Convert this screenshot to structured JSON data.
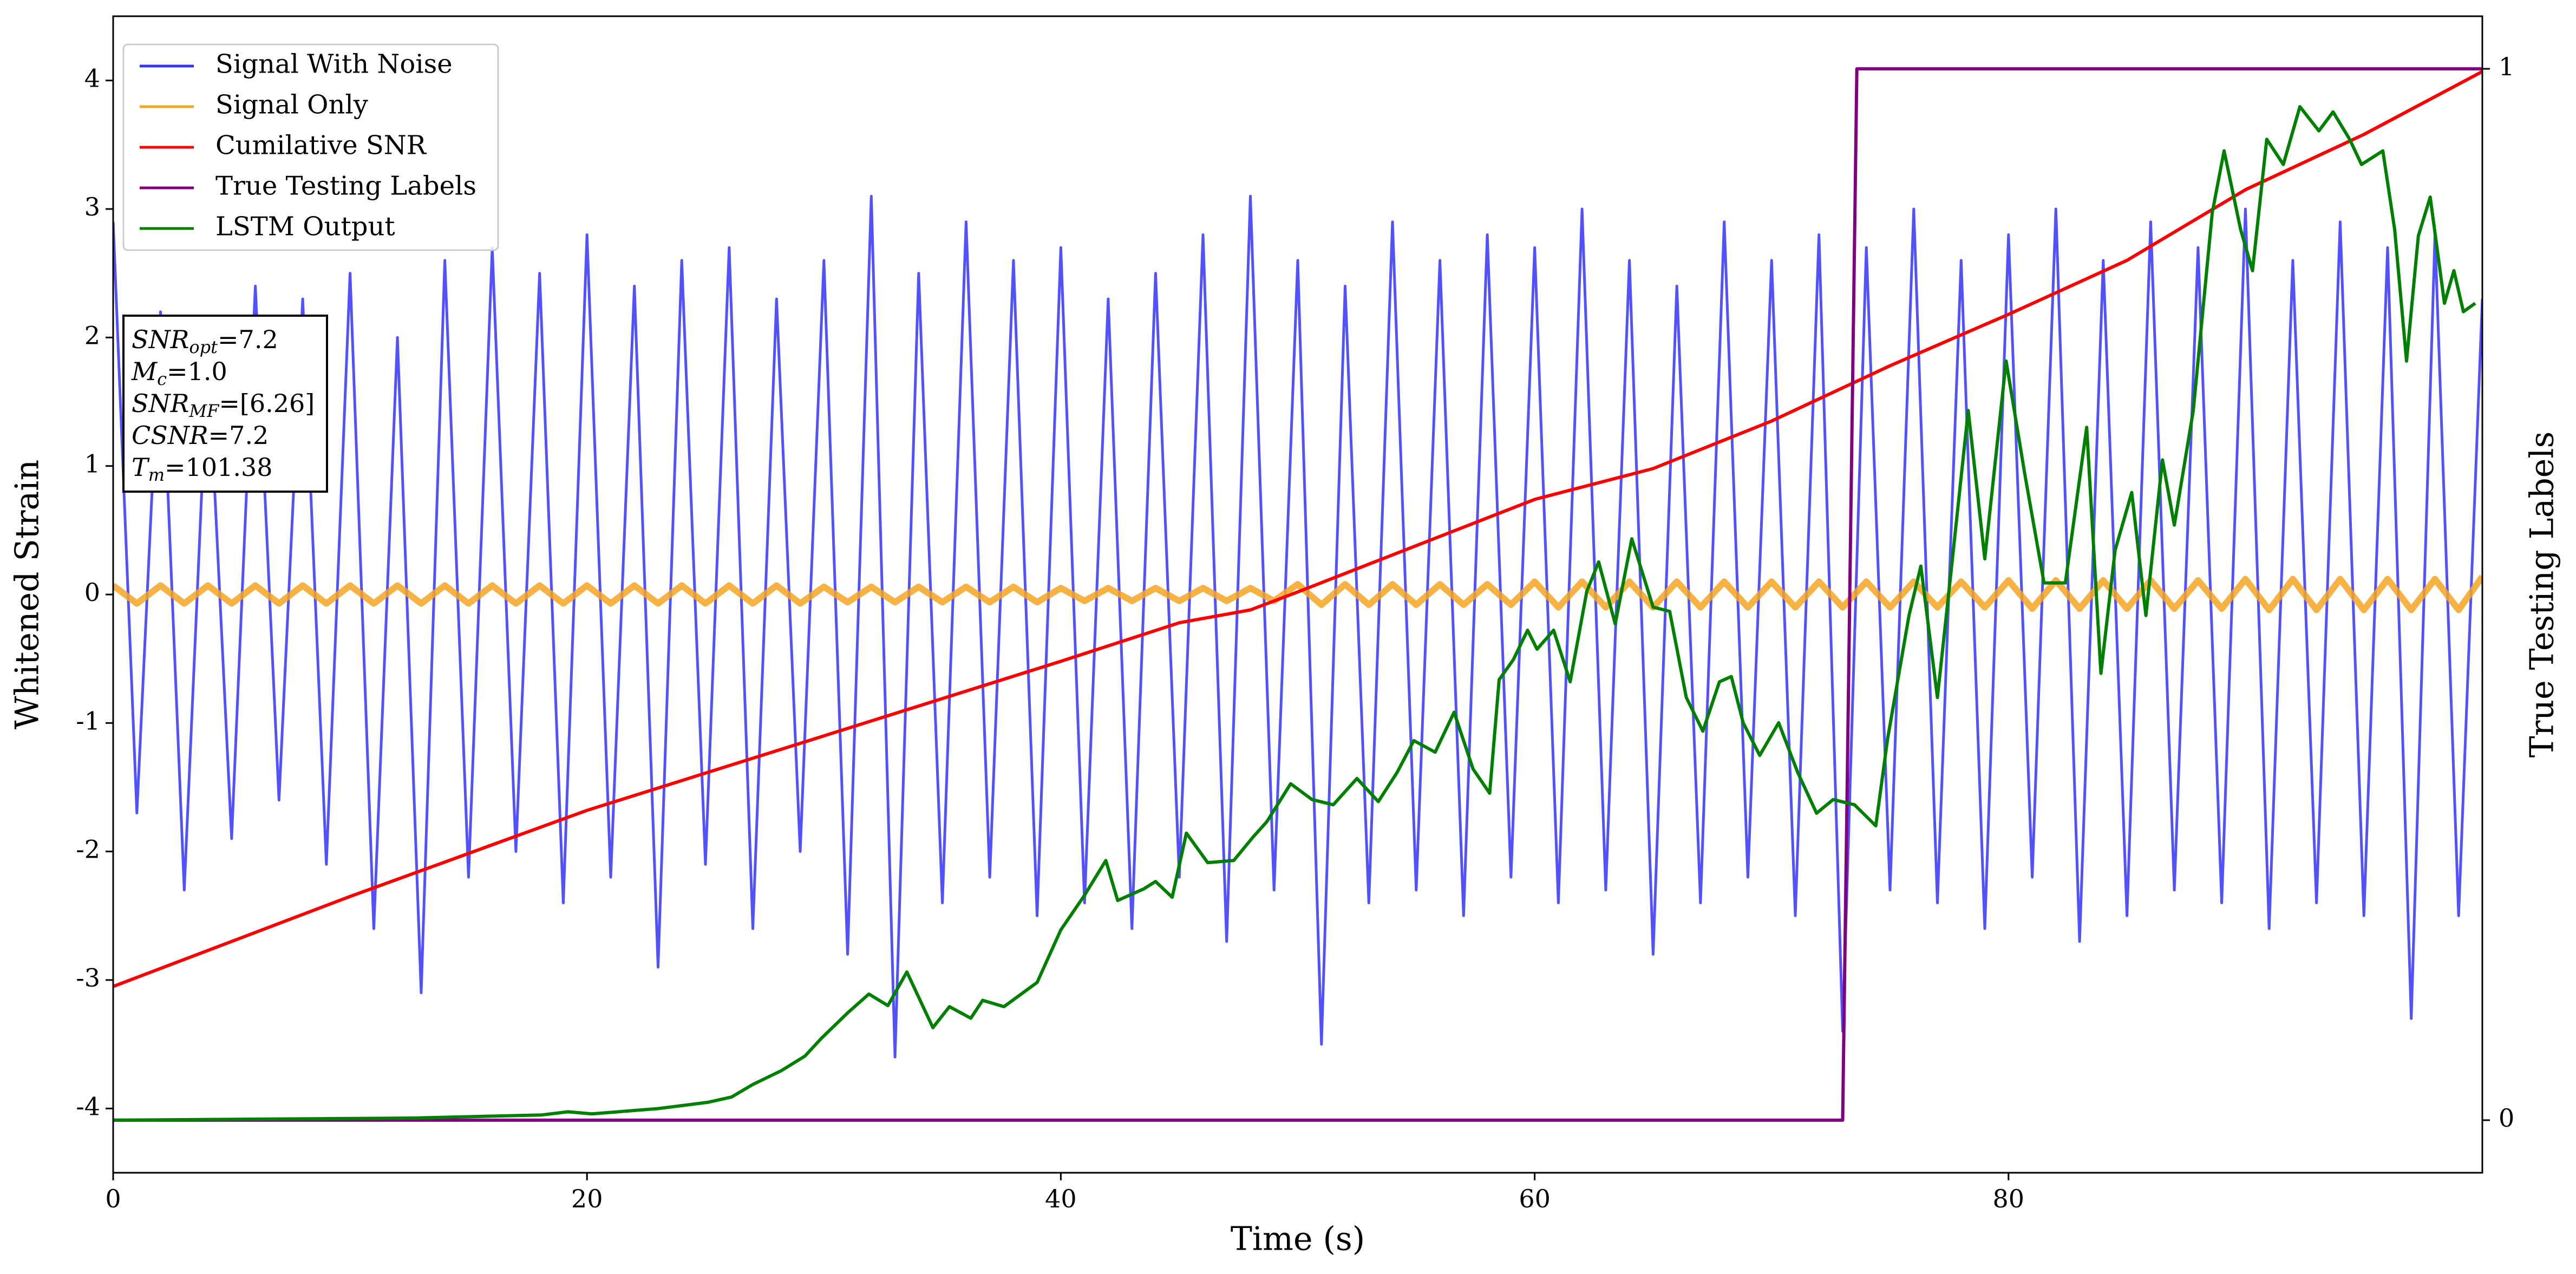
{
  "chart_data": {
    "type": "line",
    "xlabel": "Time (s)",
    "ylabel": "Whitened Strain",
    "y2label": "True Testing Labels",
    "xlim": [
      0,
      100
    ],
    "xticks": [
      0,
      20,
      40,
      60,
      80
    ],
    "ylim": [
      -4.5,
      4.5
    ],
    "yticks": [
      -4,
      -3,
      -2,
      -1,
      0,
      1,
      2,
      3,
      4
    ],
    "y2lim": [
      -0.05,
      1.05
    ],
    "y2ticks": [
      0,
      1
    ],
    "legend": "upper left",
    "x": [
      0,
      1,
      2,
      3,
      4,
      5,
      6,
      7,
      8,
      9,
      10,
      11,
      12,
      13,
      14,
      15,
      16,
      17,
      18,
      19,
      20,
      21,
      22,
      23,
      24,
      25,
      26,
      27,
      28,
      29,
      30,
      31,
      32,
      33,
      34,
      35,
      36,
      37,
      38,
      39,
      40,
      41,
      42,
      43,
      44,
      45,
      46,
      47,
      48,
      49,
      50,
      51,
      52,
      53,
      54,
      55,
      56,
      57,
      58,
      59,
      60,
      61,
      62,
      63,
      64,
      65,
      66,
      67,
      68,
      69,
      70,
      71,
      72,
      73,
      74,
      75,
      76,
      77,
      78,
      79,
      80,
      81,
      82,
      83,
      84,
      85,
      86,
      87,
      88,
      89,
      90,
      91,
      92,
      93,
      94,
      95,
      96,
      97,
      98,
      99,
      100
    ],
    "series": [
      {
        "name": "Signal With Noise",
        "color": "#3333ff",
        "values": [
          2.9,
          -1.7,
          2.2,
          -2.3,
          1.9,
          -1.9,
          2.4,
          -1.6,
          2.3,
          -2.1,
          2.5,
          -2.6,
          2.0,
          -3.1,
          2.6,
          -2.2,
          2.7,
          -2.0,
          2.5,
          -2.4,
          2.8,
          -2.2,
          2.4,
          -2.9,
          2.6,
          -2.1,
          2.7,
          -2.6,
          2.3,
          -2.0,
          2.6,
          -2.8,
          3.1,
          -3.6,
          2.5,
          -2.4,
          2.9,
          -2.2,
          2.6,
          -2.5,
          2.7,
          -2.4,
          2.3,
          -2.6,
          2.5,
          -2.2,
          2.8,
          -2.7,
          3.1,
          -2.3,
          2.6,
          -3.5,
          2.4,
          -2.4,
          2.9,
          -2.3,
          2.6,
          -2.5,
          2.8,
          -2.2,
          2.7,
          -2.4,
          3.0,
          -2.3,
          2.6,
          -2.8,
          2.4,
          -2.4,
          2.9,
          -2.2,
          2.6,
          -2.5,
          2.8,
          -3.4,
          2.7,
          -2.3,
          3.0,
          -2.4,
          2.6,
          -2.6,
          2.8,
          -2.2,
          3.0,
          -2.7,
          2.6,
          -2.5,
          2.9,
          -2.3,
          2.7,
          -2.4,
          3.0,
          -2.6,
          2.6,
          -2.4,
          2.9,
          -2.5,
          2.7,
          -3.3,
          2.8,
          -2.5,
          2.3
        ]
      },
      {
        "name": "Signal Only",
        "color": "#f5a623",
        "values": [
          0.07,
          -0.07,
          0.07,
          -0.07,
          0.07,
          -0.07,
          0.07,
          -0.07,
          0.07,
          -0.07,
          0.07,
          -0.07,
          0.07,
          -0.07,
          0.07,
          -0.07,
          0.07,
          -0.07,
          0.07,
          -0.07,
          0.07,
          -0.07,
          0.07,
          -0.07,
          0.07,
          -0.07,
          0.07,
          -0.07,
          0.07,
          -0.07,
          0.06,
          -0.06,
          0.06,
          -0.06,
          0.06,
          -0.06,
          0.06,
          -0.06,
          0.06,
          -0.06,
          0.05,
          -0.05,
          0.05,
          -0.05,
          0.05,
          -0.05,
          0.05,
          -0.05,
          0.05,
          -0.05,
          0.08,
          -0.08,
          0.08,
          -0.08,
          0.08,
          -0.08,
          0.08,
          -0.08,
          0.08,
          -0.08,
          0.1,
          -0.1,
          0.1,
          -0.1,
          0.1,
          -0.1,
          0.1,
          -0.1,
          0.1,
          -0.1,
          0.1,
          -0.1,
          0.1,
          -0.1,
          0.1,
          -0.1,
          0.1,
          -0.1,
          0.1,
          -0.1,
          0.11,
          -0.11,
          0.11,
          -0.11,
          0.11,
          -0.11,
          0.11,
          -0.11,
          0.11,
          -0.11,
          0.12,
          -0.12,
          0.12,
          -0.12,
          0.12,
          -0.12,
          0.12,
          -0.12,
          0.12,
          -0.12,
          0.14
        ]
      },
      {
        "name": "Cumilative SNR",
        "color": "#ff0000",
        "x": [
          0,
          10,
          20,
          30,
          40,
          45,
          48,
          50,
          55,
          60,
          65,
          70,
          75,
          80,
          85,
          90,
          95,
          100
        ],
        "values": [
          -3.05,
          -2.35,
          -1.68,
          -1.1,
          -0.52,
          -0.22,
          -0.12,
          0.02,
          0.38,
          0.74,
          0.98,
          1.35,
          1.78,
          2.18,
          2.6,
          3.15,
          3.58,
          4.07
        ]
      },
      {
        "name": "True Testing Labels",
        "color": "#800080",
        "axis": "y2",
        "x": [
          0,
          73,
          73.6,
          100
        ],
        "values": [
          0,
          0,
          1,
          1
        ]
      },
      {
        "name": "LSTM Output",
        "color": "#008000",
        "axis": "y2",
        "x": [
          0,
          12.6,
          18.1,
          19.2,
          20.2,
          23.0,
          25.1,
          26.1,
          27.0,
          28.2,
          29.2,
          29.9,
          31.0,
          31.9,
          32.7,
          33.5,
          34.6,
          35.3,
          36.2,
          36.7,
          37.6,
          39.0,
          40.0,
          41.0,
          41.9,
          42.4,
          43.5,
          44.0,
          44.7,
          45.3,
          46.2,
          47.3,
          48.1,
          48.7,
          49.7,
          50.6,
          51.5,
          52.5,
          53.4,
          54.2,
          54.9,
          55.8,
          56.6,
          57.4,
          58.1,
          58.5,
          59.1,
          59.7,
          60.1,
          60.8,
          61.5,
          62.2,
          62.7,
          63.4,
          64.1,
          65.0,
          65.7,
          66.4,
          67.1,
          67.8,
          68.3,
          68.8,
          69.5,
          70.3,
          71.1,
          71.9,
          72.6,
          73.5,
          74.4,
          74.9,
          75.8,
          76.3,
          77.0,
          77.6,
          78.3,
          79.0,
          79.9,
          80.7,
          81.5,
          82.4,
          83.3,
          83.9,
          84.5,
          85.2,
          85.8,
          86.5,
          87.0,
          87.8,
          88.6,
          89.1,
          89.8,
          90.3,
          90.9,
          91.6,
          92.3,
          93.1,
          93.7,
          94.4,
          94.9,
          95.8,
          96.3,
          96.8,
          97.3,
          97.8,
          98.4,
          98.8,
          99.2,
          99.7
        ],
        "values": [
          0,
          0.002,
          0.005,
          0.008,
          0.006,
          0.011,
          0.017,
          0.022,
          0.034,
          0.047,
          0.061,
          0.078,
          0.102,
          0.12,
          0.109,
          0.141,
          0.088,
          0.108,
          0.097,
          0.114,
          0.108,
          0.131,
          0.181,
          0.214,
          0.247,
          0.209,
          0.22,
          0.227,
          0.212,
          0.273,
          0.245,
          0.247,
          0.269,
          0.284,
          0.32,
          0.305,
          0.3,
          0.325,
          0.303,
          0.331,
          0.361,
          0.35,
          0.388,
          0.334,
          0.311,
          0.419,
          0.438,
          0.466,
          0.448,
          0.466,
          0.417,
          0.503,
          0.531,
          0.472,
          0.553,
          0.488,
          0.484,
          0.402,
          0.37,
          0.417,
          0.422,
          0.378,
          0.347,
          0.378,
          0.331,
          0.292,
          0.305,
          0.3,
          0.28,
          0.363,
          0.48,
          0.527,
          0.402,
          0.527,
          0.675,
          0.534,
          0.722,
          0.613,
          0.511,
          0.511,
          0.659,
          0.425,
          0.542,
          0.597,
          0.48,
          0.628,
          0.566,
          0.675,
          0.863,
          0.922,
          0.847,
          0.808,
          0.933,
          0.909,
          0.964,
          0.941,
          0.959,
          0.933,
          0.909,
          0.922,
          0.847,
          0.722,
          0.841,
          0.878,
          0.777,
          0.808,
          0.769,
          0.777
        ]
      }
    ],
    "annotation": [
      [
        "SNR",
        "opt",
        "=7.2"
      ],
      [
        "M",
        "c",
        "=1.0"
      ],
      [
        "SNR",
        "MF",
        "=[6.26]"
      ],
      [
        "CSNR",
        "=7.2"
      ],
      [
        "T",
        "m",
        "=101.38"
      ]
    ]
  }
}
